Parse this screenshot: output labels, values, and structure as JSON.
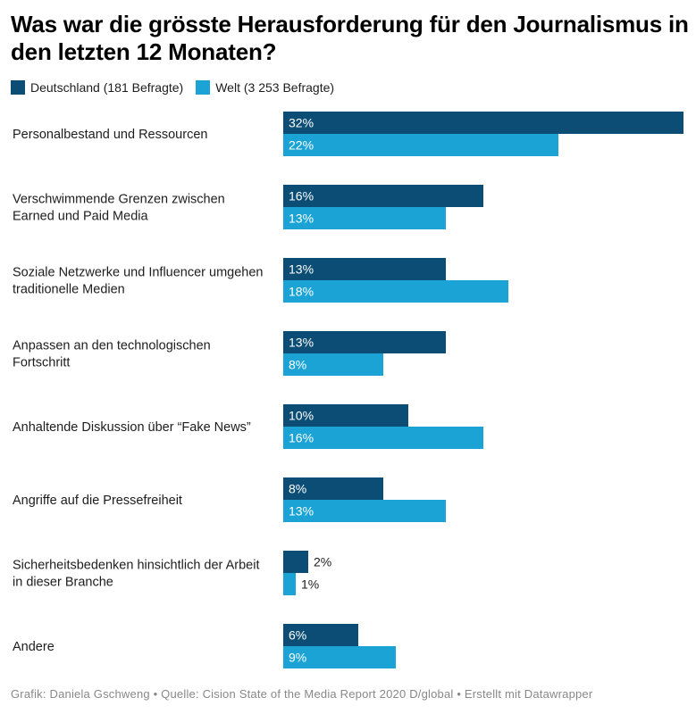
{
  "title": "Was war die grösste Herausforderung für den Journalismus in den letzten 12 Monaten?",
  "legend": [
    {
      "label": "Deutschland (181 Befragte)",
      "color": "#0b4d74"
    },
    {
      "label": "Welt (3 253 Befragte)",
      "color": "#1aa3d4"
    }
  ],
  "footer": "Grafik: Daniela Gschweng • Quelle: Cision State of the Media Report 2020 D/global • Erstellt mit Datawrapper",
  "chart_data": {
    "type": "bar",
    "orientation": "horizontal",
    "grouped": true,
    "title": "Was war die grösste Herausforderung für den Journalismus in den letzten 12 Monaten?",
    "value_suffix": "%",
    "xlim": [
      0,
      32
    ],
    "categories": [
      [
        "Personalbestand und Ressourcen"
      ],
      [
        "Verschwimmende Grenzen zwischen",
        "Earned und Paid Media"
      ],
      [
        "Soziale Netzwerke und Influencer umgehen",
        "traditionelle Medien"
      ],
      [
        "Anpassen an den technologischen",
        "Fortschritt"
      ],
      [
        "Anhaltende Diskussion über “Fake News”"
      ],
      [
        "Angriffe auf die Pressefreiheit"
      ],
      [
        "Sicherheitsbedenken hinsichtlich der Arbeit",
        "in dieser Branche"
      ],
      [
        "Andere"
      ]
    ],
    "series": [
      {
        "name": "Deutschland (181 Befragte)",
        "color": "#0b4d74",
        "values": [
          32,
          16,
          13,
          13,
          10,
          8,
          2,
          6
        ]
      },
      {
        "name": "Welt (3 253 Befragte)",
        "color": "#1aa3d4",
        "values": [
          22,
          13,
          18,
          8,
          16,
          13,
          1,
          9
        ]
      }
    ]
  }
}
